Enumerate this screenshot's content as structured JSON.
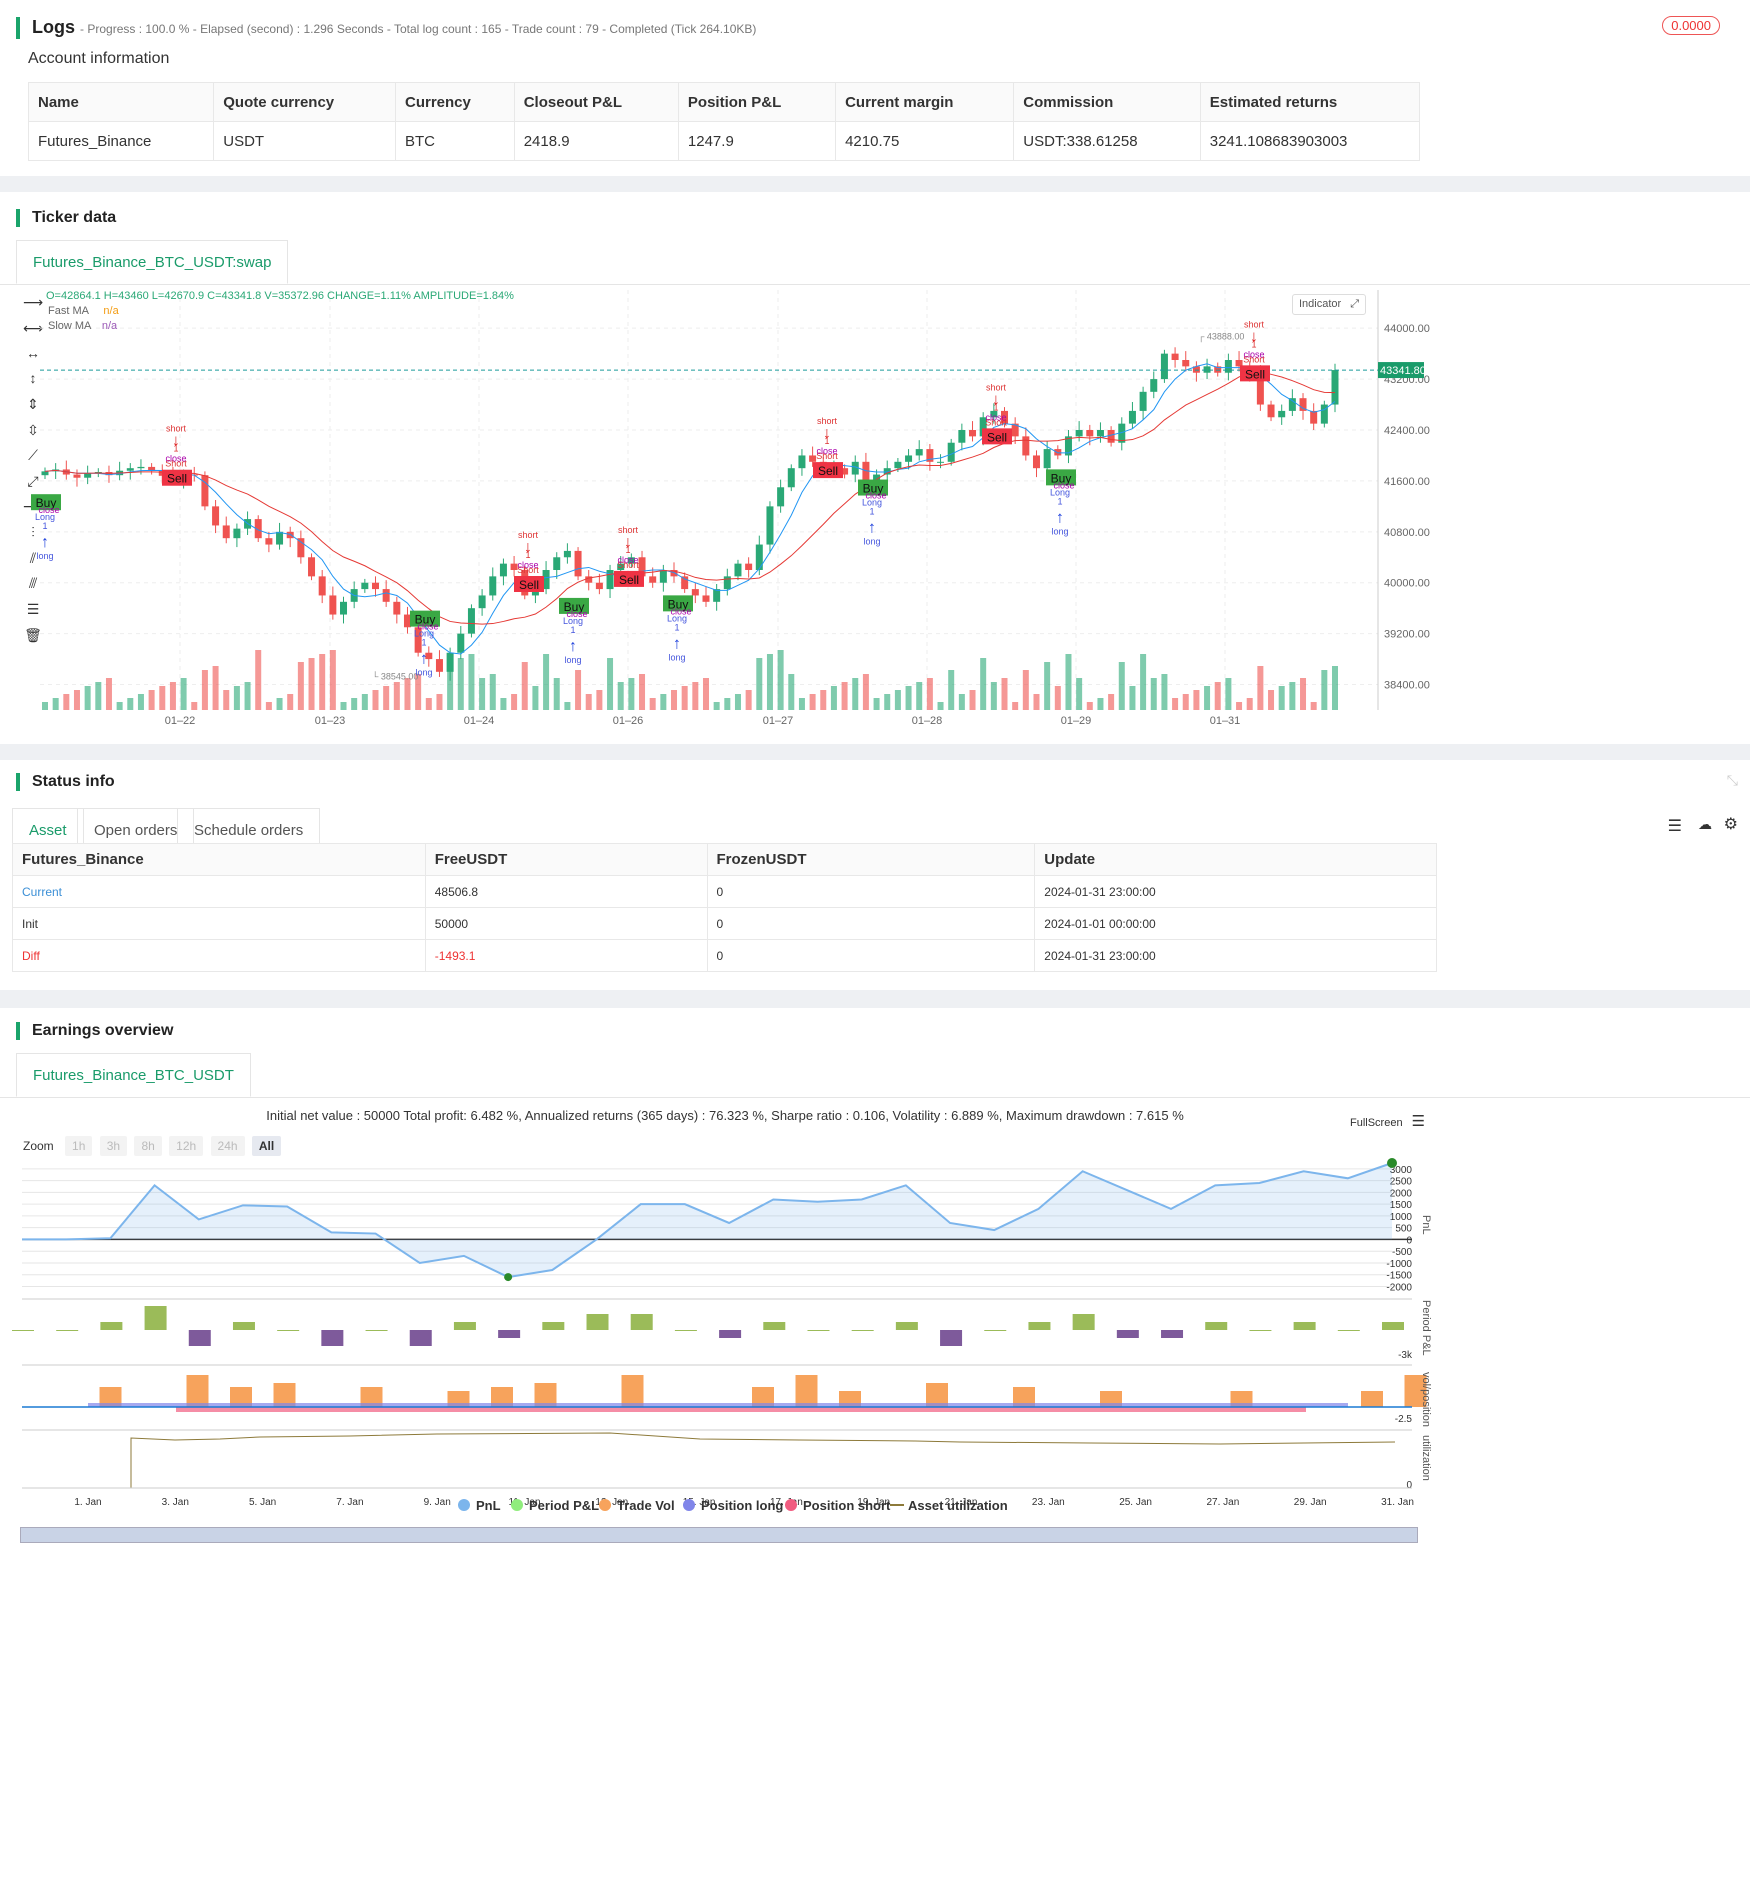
{
  "logs": {
    "title": "Logs",
    "summary": "- Progress : 100.0 % - Elapsed (second) : 1.296  Seconds - Total log count : 165 - Trade count : 79 - Completed (Tick 264.10KB)",
    "badge": "0.0000"
  },
  "account": {
    "title": "Account information",
    "headers": [
      "Name",
      "Quote currency",
      "Currency",
      "Closeout P&L",
      "Position P&L",
      "Current margin",
      "Commission",
      "Estimated returns"
    ],
    "row": [
      "Futures_Binance",
      "USDT",
      "BTC",
      "2418.9",
      "1247.9",
      "4210.75",
      "USDT:338.61258",
      "3241.108683903003"
    ]
  },
  "ticker": {
    "title": "Ticker data",
    "tab": "Futures_Binance_BTC_USDT:swap",
    "ohlc": "O=42864.1 H=43460 L=42670.9 C=43341.8 V=35372.96 CHANGE=1.11% AMPLITUDE=1.84%",
    "fast_ma": "Fast MA",
    "slow_ma": "Slow MA",
    "na": "n/a",
    "indicator_btn": "Indicator",
    "last_price": "43341.80",
    "high_label": "43888.00",
    "low_label": "38545.00"
  },
  "chart_data": [
    {
      "type": "candlestick",
      "title": "Futures_Binance_BTC_USDT:swap",
      "x_ticks": [
        "01–22",
        "01–23",
        "01–24",
        "01–26",
        "01–27",
        "01–28",
        "01–29",
        "01–31"
      ],
      "y_ticks": [
        44000,
        43200,
        42400,
        41600,
        40800,
        40000,
        39200,
        38400
      ],
      "ylim": [
        38000,
        44600
      ],
      "last": 43341.8,
      "high": 43888.0,
      "low": 38545.0,
      "close": [
        41750,
        41780,
        41700,
        41650,
        41720,
        41740,
        41690,
        41760,
        41800,
        41820,
        41760,
        41680,
        41620,
        41700,
        41690,
        41200,
        40900,
        40700,
        40850,
        41000,
        40700,
        40600,
        40800,
        40700,
        40400,
        40100,
        39800,
        39500,
        39700,
        39900,
        40000,
        39900,
        39700,
        39500,
        39300,
        38900,
        38800,
        38600,
        38900,
        39200,
        39600,
        39800,
        40100,
        40300,
        40200,
        39800,
        39900,
        40200,
        40400,
        40500,
        40100,
        40000,
        39900,
        40200,
        40300,
        40400,
        40100,
        40000,
        40200,
        40100,
        39900,
        39800,
        39700,
        39900,
        40100,
        40300,
        40200,
        40600,
        41200,
        41500,
        41800,
        42000,
        41900,
        41800,
        41800,
        41700,
        41900,
        41600,
        41700,
        41800,
        41900,
        42000,
        42100,
        41900,
        41900,
        42200,
        42400,
        42300,
        42600,
        42700,
        42500,
        42300,
        42000,
        41800,
        42100,
        42000,
        42300,
        42400,
        42300,
        42400,
        42200,
        42500,
        42700,
        43000,
        43200,
        43600,
        43500,
        43400,
        43300,
        43400,
        43300,
        43500,
        43400,
        43300,
        42800,
        42600,
        42700,
        42900,
        42700,
        42500,
        42800,
        43341.8
      ]
    },
    {
      "type": "line",
      "title": "Initial net value : 50000 Total profit: 6.482 %, Annualized returns (365 days) : 76.323 %, Sharpe ratio : 0.106, Volatility : 6.889 %, Maximum drawdown : 7.615 %",
      "x_ticks": [
        "1. Jan",
        "3. Jan",
        "5. Jan",
        "7. Jan",
        "9. Jan",
        "11. Jan",
        "13. Jan",
        "15. Jan",
        "17. Jan",
        "19. Jan",
        "21. Jan",
        "23. Jan",
        "25. Jan",
        "27. Jan",
        "29. Jan",
        "31. Jan"
      ],
      "y_ticks": [
        3000,
        2500,
        2000,
        1500,
        1000,
        500,
        0,
        -500,
        -1000,
        -1500,
        -2000
      ],
      "series": [
        {
          "name": "PnL",
          "values": [
            0,
            0,
            50,
            2300,
            850,
            1450,
            1400,
            300,
            250,
            -1000,
            -700,
            -1600,
            -1300,
            0,
            1500,
            1500,
            700,
            1700,
            1600,
            1700,
            2300,
            700,
            400,
            1300,
            2900,
            2100,
            1300,
            2300,
            2400,
            2900,
            2600,
            3250
          ]
        }
      ]
    }
  ],
  "status": {
    "title": "Status info",
    "tabs": [
      "Asset",
      "Open orders",
      "Schedule orders"
    ],
    "headers": [
      "Futures_Binance",
      "FreeUSDT",
      "FrozenUSDT",
      "Update"
    ],
    "rows": [
      [
        "Current",
        "48506.8",
        "0",
        "2024-01-31 23:00:00"
      ],
      [
        "Init",
        "50000",
        "0",
        "2024-01-01 00:00:00"
      ],
      [
        "Diff",
        "-1493.1",
        "0",
        "2024-01-31 23:00:00"
      ]
    ]
  },
  "earnings": {
    "title": "Earnings overview",
    "tab": "Futures_Binance_BTC_USDT",
    "fullscreen": "FullScreen",
    "zoom": "Zoom",
    "zoom_opts": [
      "1h",
      "3h",
      "8h",
      "12h",
      "24h",
      "All"
    ],
    "axis_right": [
      "PnL",
      "Period P&L",
      "vol/position",
      "utilization"
    ],
    "tick_3k": "-3k",
    "tick_25": "-2.5",
    "tick_0": "0",
    "legend": [
      "PnL",
      "Period P&L",
      "Trade Vol",
      "Position long",
      "Position short",
      "Asset utilization"
    ]
  },
  "colors": {
    "up": "#2aa876",
    "down": "#ef5350",
    "fast": "#2196f3",
    "slow": "#e53935",
    "accent": "#1aa46b",
    "pnl": "#7cb5ec"
  },
  "signals": {
    "buy": "Buy",
    "sell": "Sell",
    "long": "long",
    "short": "short",
    "Long": "Long",
    "Short": "Short",
    "close": "close",
    "one": "1"
  }
}
